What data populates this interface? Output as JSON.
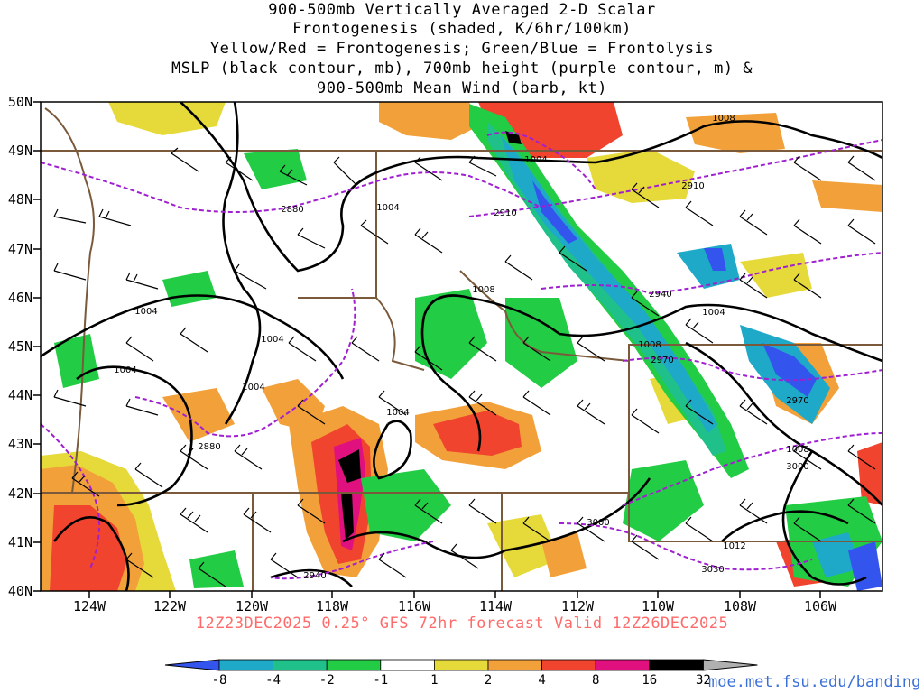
{
  "header": {
    "line1": "900-500mb Vertically Averaged 2-D Scalar",
    "line2": "Frontogenesis (shaded, K/6hr/100km)",
    "line3": "Yellow/Red = Frontogenesis;  Green/Blue = Frontolysis",
    "line4": "MSLP (black contour, mb), 700mb height (purple contour, m) &",
    "line5": "900-500mb Mean Wind (barb, kt)"
  },
  "axes": {
    "lat_labels": [
      "50N",
      "49N",
      "48N",
      "47N",
      "46N",
      "45N",
      "44N",
      "43N",
      "42N",
      "41N",
      "40N"
    ],
    "lon_labels": [
      "124W",
      "122W",
      "120W",
      "118W",
      "116W",
      "114W",
      "112W",
      "110W",
      "108W",
      "106W"
    ]
  },
  "contour_labels": {
    "mslp": [
      "1008",
      "1004",
      "1004",
      "1008",
      "1004",
      "1004",
      "1004",
      "1004",
      "1004",
      "1008",
      "1004",
      "1008",
      "1012"
    ],
    "height": [
      "2880",
      "2910",
      "2910",
      "2940",
      "2970",
      "2970",
      "2880",
      "3000",
      "3000",
      "2940",
      "3030"
    ]
  },
  "footer": {
    "forecast_text": "12Z23DEC2025 0.25° GFS 72hr forecast Valid 12Z26DEC2025",
    "credit": "moe.met.fsu.edu/banding"
  },
  "colorbar": {
    "ticks": [
      "-8",
      "-4",
      "-2",
      "-1",
      "1",
      "2",
      "4",
      "8",
      "16",
      "32"
    ],
    "colors": [
      "#3355ee",
      "#1ea9c9",
      "#1fc08a",
      "#22cc44",
      "#ffffff",
      "#e6d93a",
      "#f2a13a",
      "#f0442e",
      "#e0117f",
      "#000000",
      "#b0b0b0"
    ]
  },
  "colors": {
    "mslp_contour": "#000000",
    "height_contour": "#a020d0",
    "borders": "#7a5a3a",
    "footer_text": "#ff6a6a",
    "credit_text": "#3b6fd8"
  }
}
